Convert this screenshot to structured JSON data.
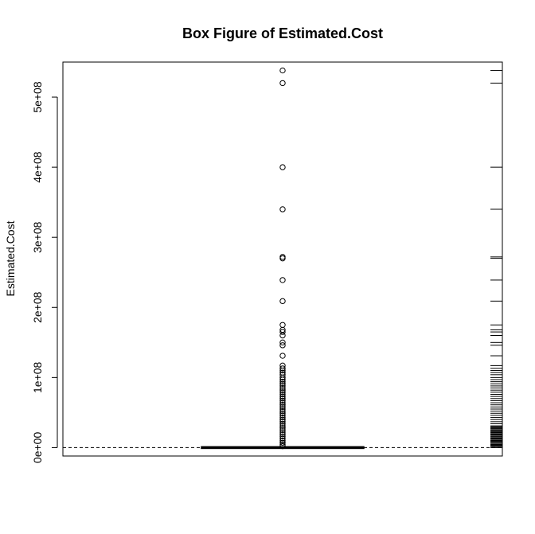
{
  "chart_data": {
    "type": "box",
    "title": "Box Figure of Estimated.Cost",
    "ylabel": "Estimated.Cost",
    "xlabel": "",
    "ylim": [
      -12000000,
      550000000
    ],
    "yticks": [
      0,
      100000000,
      200000000,
      300000000,
      400000000,
      500000000
    ],
    "ytick_labels": [
      "0e+00",
      "1e+08",
      "2e+08",
      "3e+08",
      "4e+08",
      "5e+08"
    ],
    "box": {
      "min": 0,
      "q1": 0,
      "median": 0,
      "q3": 0,
      "max": 0
    },
    "outliers": [
      538000000,
      520000000,
      400000000,
      340000000,
      272000000,
      270000000,
      239000000,
      209000000,
      175000000,
      168000000,
      165000000,
      160000000,
      150000000,
      146000000,
      131000000,
      117000000,
      113000000,
      110000000,
      107000000,
      104000000,
      100000000,
      97000000,
      94000000,
      91000000,
      88000000,
      85000000,
      82000000,
      79000000,
      76000000,
      73000000,
      70000000,
      67000000,
      64000000,
      61000000,
      58000000,
      55000000,
      52000000,
      49000000,
      46000000,
      43000000,
      40000000,
      37000000,
      34000000,
      31000000,
      28000000,
      25000000,
      22000000,
      19000000,
      16000000,
      13000000,
      10000000,
      7000000,
      4000000,
      2000000
    ],
    "rug": true,
    "reference_line": 0
  }
}
